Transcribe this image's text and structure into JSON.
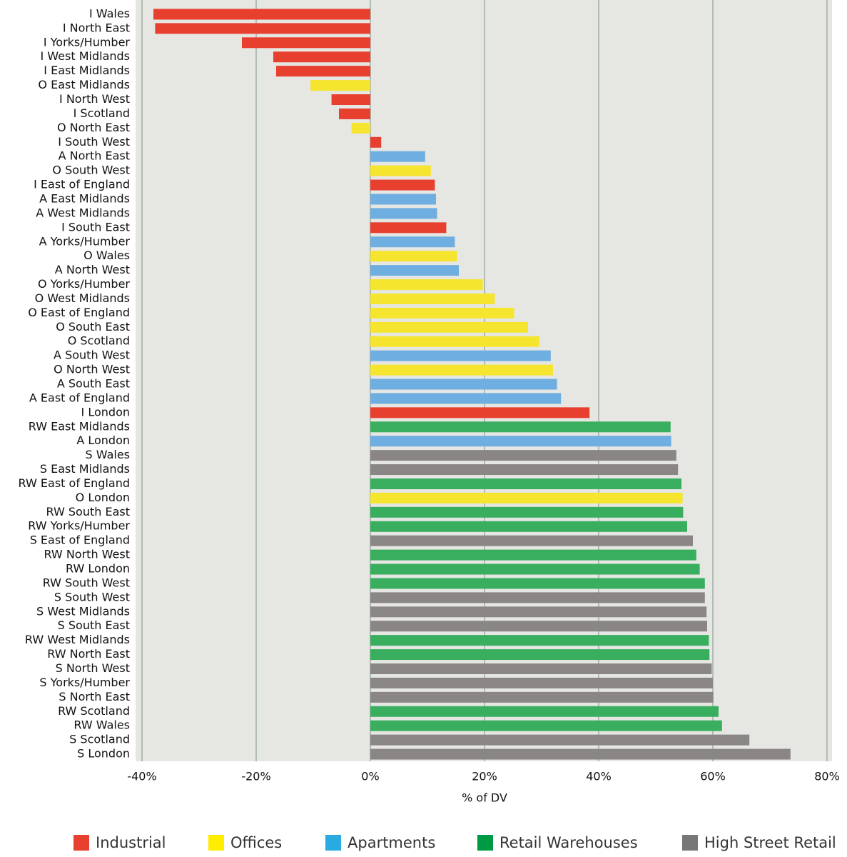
{
  "chart_data": {
    "type": "bar",
    "orientation": "horizontal",
    "x_label": "% of DV",
    "categories": [
      "I Wales",
      "I North East",
      "I Yorks/Humber",
      "I West Midlands",
      "I East Midlands",
      "O East Midlands",
      "I North West",
      "I Scotland",
      "O North East",
      "I South West",
      "A North East",
      "O South West",
      "I East of England",
      "A East Midlands",
      "A West Midlands",
      "I South East",
      "A Yorks/Humber",
      "O Wales",
      "A North West",
      "O Yorks/Humber",
      "O West Midlands",
      "O East of England",
      "O South East",
      "O Scotland",
      "A South West",
      "O North West",
      "A South East",
      "A East of England",
      "I London",
      "RW East Midlands",
      "A London",
      "S Wales",
      "S East Midlands",
      "RW East of England",
      "O London",
      "RW South East",
      "RW Yorks/Humber",
      "S East of England",
      "RW North West",
      "RW London",
      "RW South West",
      "S South West",
      "S West Midlands",
      "S South East",
      "RW West Midlands",
      "RW North East",
      "S North West",
      "S Yorks/Humber",
      "S North East",
      "RW Scotland",
      "RW Wales",
      "S Scotland",
      "S London"
    ],
    "series": [
      {
        "name": "Industrial",
        "color": "#e8402f",
        "legend_color": "#e8402f",
        "values": [
          -38,
          -37.7,
          -22.5,
          -17,
          -16.5,
          null,
          -6.8,
          -5.5,
          null,
          1.9,
          null,
          null,
          11.3,
          null,
          null,
          13.3,
          null,
          null,
          null,
          null,
          null,
          null,
          null,
          null,
          null,
          null,
          null,
          null,
          38.4,
          null,
          null,
          null,
          null,
          null,
          null,
          null,
          null,
          null,
          null,
          null,
          null,
          null,
          null,
          null,
          null,
          null,
          null,
          null,
          null,
          null,
          null,
          null,
          null
        ]
      },
      {
        "name": "Offices",
        "color": "#f5e52f",
        "legend_color": "#ffed00",
        "values": [
          null,
          null,
          null,
          null,
          null,
          -10.5,
          null,
          null,
          -3.3,
          null,
          null,
          10.6,
          null,
          null,
          null,
          null,
          null,
          15.2,
          null,
          19.7,
          21.8,
          25.2,
          27.6,
          29.6,
          null,
          32,
          null,
          null,
          null,
          null,
          null,
          null,
          null,
          null,
          54.7,
          null,
          null,
          null,
          null,
          null,
          null,
          null,
          null,
          null,
          null,
          null,
          null,
          null,
          null,
          null,
          null,
          null,
          null
        ]
      },
      {
        "name": "Apartments",
        "color": "#6eaee0",
        "legend_color": "#29abe2",
        "values": [
          null,
          null,
          null,
          null,
          null,
          null,
          null,
          null,
          null,
          null,
          9.6,
          null,
          null,
          11.5,
          11.7,
          null,
          14.8,
          null,
          15.5,
          null,
          null,
          null,
          null,
          null,
          31.6,
          null,
          32.7,
          33.4,
          null,
          null,
          52.7,
          null,
          null,
          null,
          null,
          null,
          null,
          null,
          null,
          null,
          null,
          null,
          null,
          null,
          null,
          null,
          null,
          null,
          null,
          null,
          null,
          null,
          null
        ]
      },
      {
        "name": "Retail Warehouses",
        "color": "#3aae5f",
        "legend_color": "#009a44",
        "values": [
          null,
          null,
          null,
          null,
          null,
          null,
          null,
          null,
          null,
          null,
          null,
          null,
          null,
          null,
          null,
          null,
          null,
          null,
          null,
          null,
          null,
          null,
          null,
          null,
          null,
          null,
          null,
          null,
          null,
          52.6,
          null,
          null,
          null,
          54.5,
          null,
          54.8,
          55.5,
          null,
          57.1,
          57.7,
          58.6,
          null,
          null,
          null,
          59.3,
          59.4,
          null,
          null,
          null,
          61,
          61.6,
          null,
          null
        ]
      },
      {
        "name": "High Street Retail",
        "color": "#8a8686",
        "legend_color": "#777777",
        "values": [
          null,
          null,
          null,
          null,
          null,
          null,
          null,
          null,
          null,
          null,
          null,
          null,
          null,
          null,
          null,
          null,
          null,
          null,
          null,
          null,
          null,
          null,
          null,
          null,
          null,
          null,
          null,
          null,
          null,
          null,
          null,
          53.6,
          53.9,
          null,
          null,
          null,
          null,
          56.5,
          null,
          null,
          null,
          58.6,
          58.9,
          59,
          null,
          null,
          59.8,
          60,
          60.1,
          null,
          null,
          66.4,
          73.6
        ]
      }
    ],
    "xlim": [
      -40,
      80
    ],
    "xticks": [
      {
        "value": -40,
        "label": "-40%"
      },
      {
        "value": -20,
        "label": "-20%"
      },
      {
        "value": 0,
        "label": "0%"
      },
      {
        "value": 20,
        "label": "20%"
      },
      {
        "value": 40,
        "label": "40%"
      },
      {
        "value": 60,
        "label": "60%"
      },
      {
        "value": 80,
        "label": "80%"
      }
    ],
    "grid": true
  }
}
